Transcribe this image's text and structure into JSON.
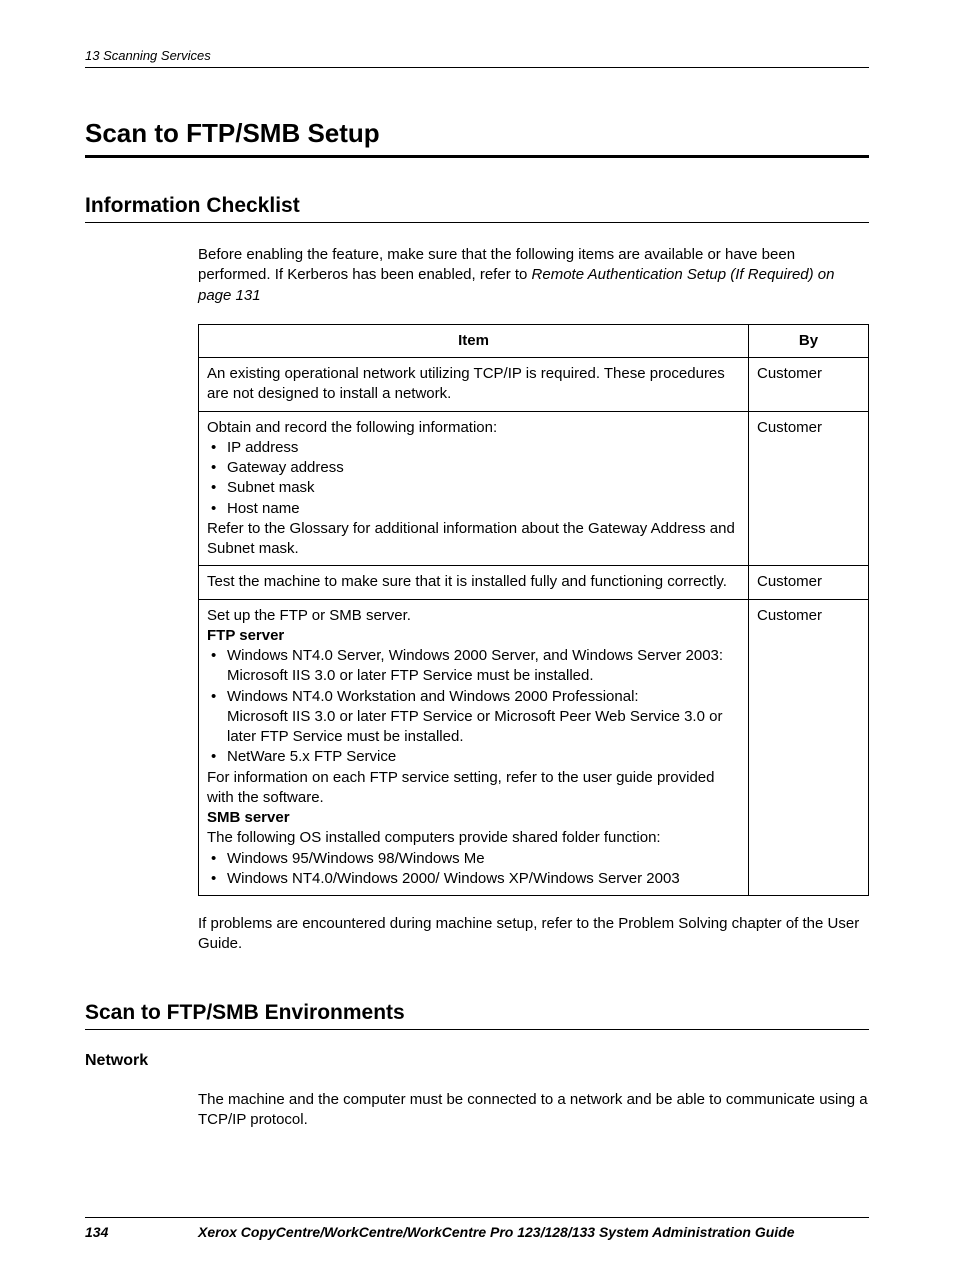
{
  "header": {
    "chapter": "13  Scanning Services"
  },
  "h1": "Scan to FTP/SMB Setup",
  "section1": {
    "title": "Information Checklist",
    "intro_plain": "Before enabling the feature, make sure that the following items are available or have been performed. If Kerberos has been enabled, refer to ",
    "intro_italic": "Remote Authentication Setup (If Required) on page 131",
    "table": {
      "col_item": "Item",
      "col_by": "By",
      "rows": [
        {
          "by": "Customer",
          "text": "An existing operational network utilizing TCP/IP is required. These procedures are not designed to install a network."
        },
        {
          "by": "Customer",
          "lead": "Obtain and record the following information:",
          "bullets": [
            "IP address",
            "Gateway address",
            "Subnet mask",
            "Host name"
          ],
          "tail": "Refer to the Glossary for additional information about the Gateway Address and Subnet mask."
        },
        {
          "by": "Customer",
          "text": "Test the machine to make sure that it is installed fully and functioning correctly."
        },
        {
          "by": "Customer",
          "lead": "Set up the FTP or SMB server.",
          "ftp_label": "FTP server",
          "ftp_bullets": [
            {
              "line1": "Windows NT4.0 Server, Windows 2000 Server, and Windows Server 2003:",
              "line2": "Microsoft IIS 3.0 or later FTP Service must be installed."
            },
            {
              "line1": "Windows NT4.0 Workstation and Windows 2000 Professional:",
              "line2": "Microsoft IIS 3.0 or later FTP Service or Microsoft Peer Web Service 3.0 or later FTP Service must be installed."
            },
            {
              "line1": "NetWare 5.x FTP Service"
            }
          ],
          "ftp_tail": "For information on each FTP service setting, refer to the user guide provided with the software.",
          "smb_label": "SMB server",
          "smb_lead": "The following OS installed computers provide shared folder function:",
          "smb_bullets": [
            "Windows 95/Windows 98/Windows Me",
            "Windows NT4.0/Windows 2000/ Windows XP/Windows Server 2003"
          ]
        }
      ]
    },
    "outro": "If problems are encountered during machine setup, refer to the Problem Solving chapter of the User Guide."
  },
  "section2": {
    "title": "Scan to FTP/SMB Environments",
    "sub_title": "Network",
    "body": "The machine and the computer must be connected to a network and be able to communicate using a TCP/IP protocol."
  },
  "footer": {
    "page": "134",
    "title": "Xerox CopyCentre/WorkCentre/WorkCentre Pro 123/128/133 System Administration Guide"
  }
}
